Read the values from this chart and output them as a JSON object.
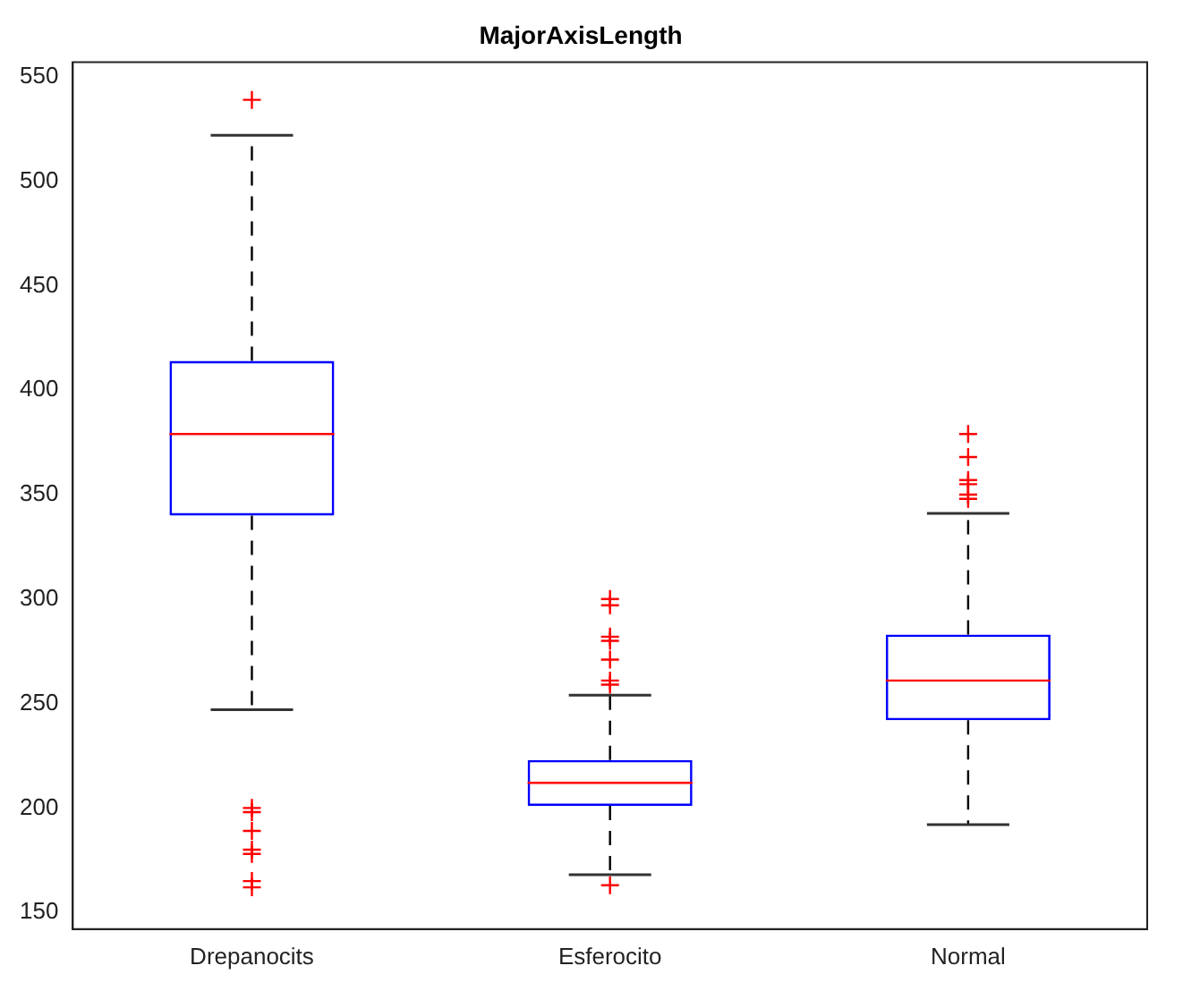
{
  "chart_data": {
    "type": "box",
    "title": "MajorAxisLength",
    "categories": [
      "Drepanocits",
      "Esferocito",
      "Normal"
    ],
    "series": [
      {
        "color": "#0000ff",
        "boxes": [
          {
            "low": 247,
            "q1": 340,
            "median": 379,
            "q3": 414,
            "high": 522,
            "outliers": [
              539,
              200,
              198,
              189,
              180,
              178,
              165,
              162
            ]
          },
          {
            "low": 168,
            "q1": 201,
            "median": 212,
            "q3": 223,
            "high": 254,
            "outliers": [
              163,
              300,
              297,
              282,
              280,
              271,
              261,
              259
            ]
          },
          {
            "low": 192,
            "q1": 242,
            "median": 261,
            "q3": 283,
            "high": 341,
            "outliers": [
              379,
              368,
              357,
              355,
              350,
              348
            ]
          }
        ]
      }
    ],
    "ylim": [
      142,
      557
    ],
    "yticks": [
      150,
      200,
      250,
      300,
      350,
      400,
      450,
      500,
      550
    ],
    "grid": false,
    "legend": false,
    "marker": "cross"
  }
}
